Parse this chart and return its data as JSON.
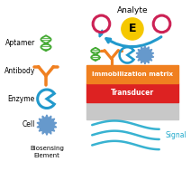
{
  "bg_color": "#ffffff",
  "analyte_label": "Analyte",
  "enzyme_e_label": "E",
  "immob_label": "Immobilization matrix",
  "transd_label": "Transducer",
  "signal_label": "Signal",
  "immob_color": "#F08020",
  "transd_color": "#DD2222",
  "base_color": "#C8C8C8",
  "dna_green": "#44AA33",
  "antibody_orange": "#F08020",
  "enzyme_blue": "#2299CC",
  "cell_blue": "#6699CC",
  "analyte_ring_color": "#CC2255",
  "arrow_blue": "#2299CC",
  "signal_blue": "#22AACC",
  "enzyme_circle_color": "#F5C800",
  "text_color": "#000000"
}
